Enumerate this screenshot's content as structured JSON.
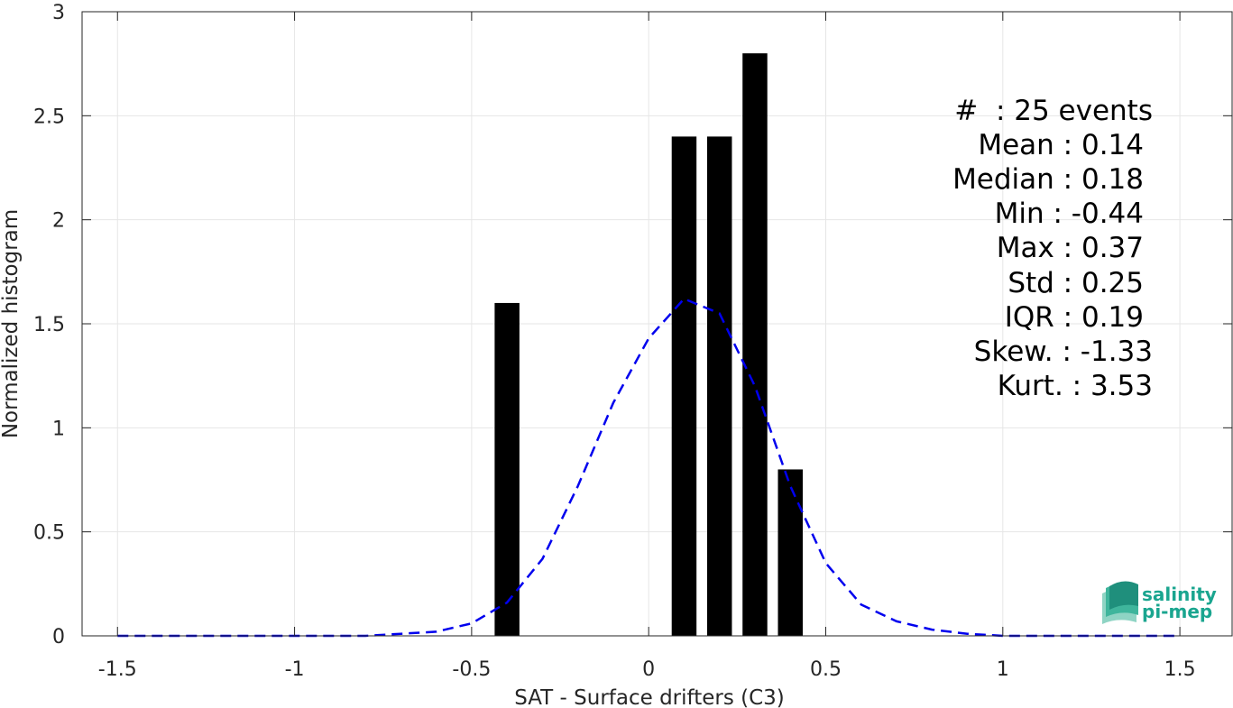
{
  "chart_data": {
    "type": "bar",
    "xlabel": "SAT - Surface drifters (C3)",
    "ylabel": "Normalized histogram",
    "xlim": [
      -1.6,
      1.65
    ],
    "ylim": [
      0,
      3
    ],
    "xticks": [
      -1.5,
      -1,
      -0.5,
      0,
      0.5,
      1,
      1.5
    ],
    "xtick_labels": [
      "-1.5",
      "-1",
      "-0.5",
      "0",
      "0.5",
      "1",
      "1.5"
    ],
    "yticks": [
      0,
      0.5,
      1,
      1.5,
      2,
      2.5,
      3
    ],
    "ytick_labels": [
      "0",
      "0.5",
      "1",
      "1.5",
      "2",
      "2.5",
      "3"
    ],
    "grid": true,
    "bar_color": "#000000",
    "bar_width": 0.07,
    "bars": [
      {
        "x": -0.4,
        "y": 1.6
      },
      {
        "x": 0.1,
        "y": 2.4
      },
      {
        "x": 0.2,
        "y": 2.4
      },
      {
        "x": 0.3,
        "y": 2.8
      },
      {
        "x": 0.4,
        "y": 0.8
      }
    ],
    "fit_curve": {
      "style": "dashed",
      "color": "#0000ee",
      "x": [
        -1.5,
        -1.4,
        -1.3,
        -1.2,
        -1.1,
        -1.0,
        -0.9,
        -0.8,
        -0.7,
        -0.6,
        -0.5,
        -0.4,
        -0.3,
        -0.2,
        -0.1,
        0.0,
        0.1,
        0.2,
        0.3,
        0.4,
        0.5,
        0.6,
        0.7,
        0.8,
        0.9,
        1.0,
        1.1,
        1.2,
        1.3,
        1.4,
        1.5
      ],
      "y": [
        0,
        0,
        0,
        0,
        0,
        0,
        0,
        0,
        0.01,
        0.02,
        0.06,
        0.16,
        0.37,
        0.72,
        1.12,
        1.43,
        1.62,
        1.55,
        1.2,
        0.72,
        0.35,
        0.15,
        0.07,
        0.03,
        0.01,
        0,
        0,
        0,
        0,
        0,
        0
      ]
    },
    "stats": [
      "#  : 25 events",
      "Mean : 0.14",
      "Median : 0.18",
      "Min : -0.44",
      "Max : 0.37",
      "Std : 0.25",
      "IQR : 0.19",
      "Skew. : -1.33",
      "Kurt. : 3.53"
    ]
  },
  "logo": {
    "line1": "salinity",
    "line2": "pi-mep",
    "color": "#1aa58f"
  }
}
